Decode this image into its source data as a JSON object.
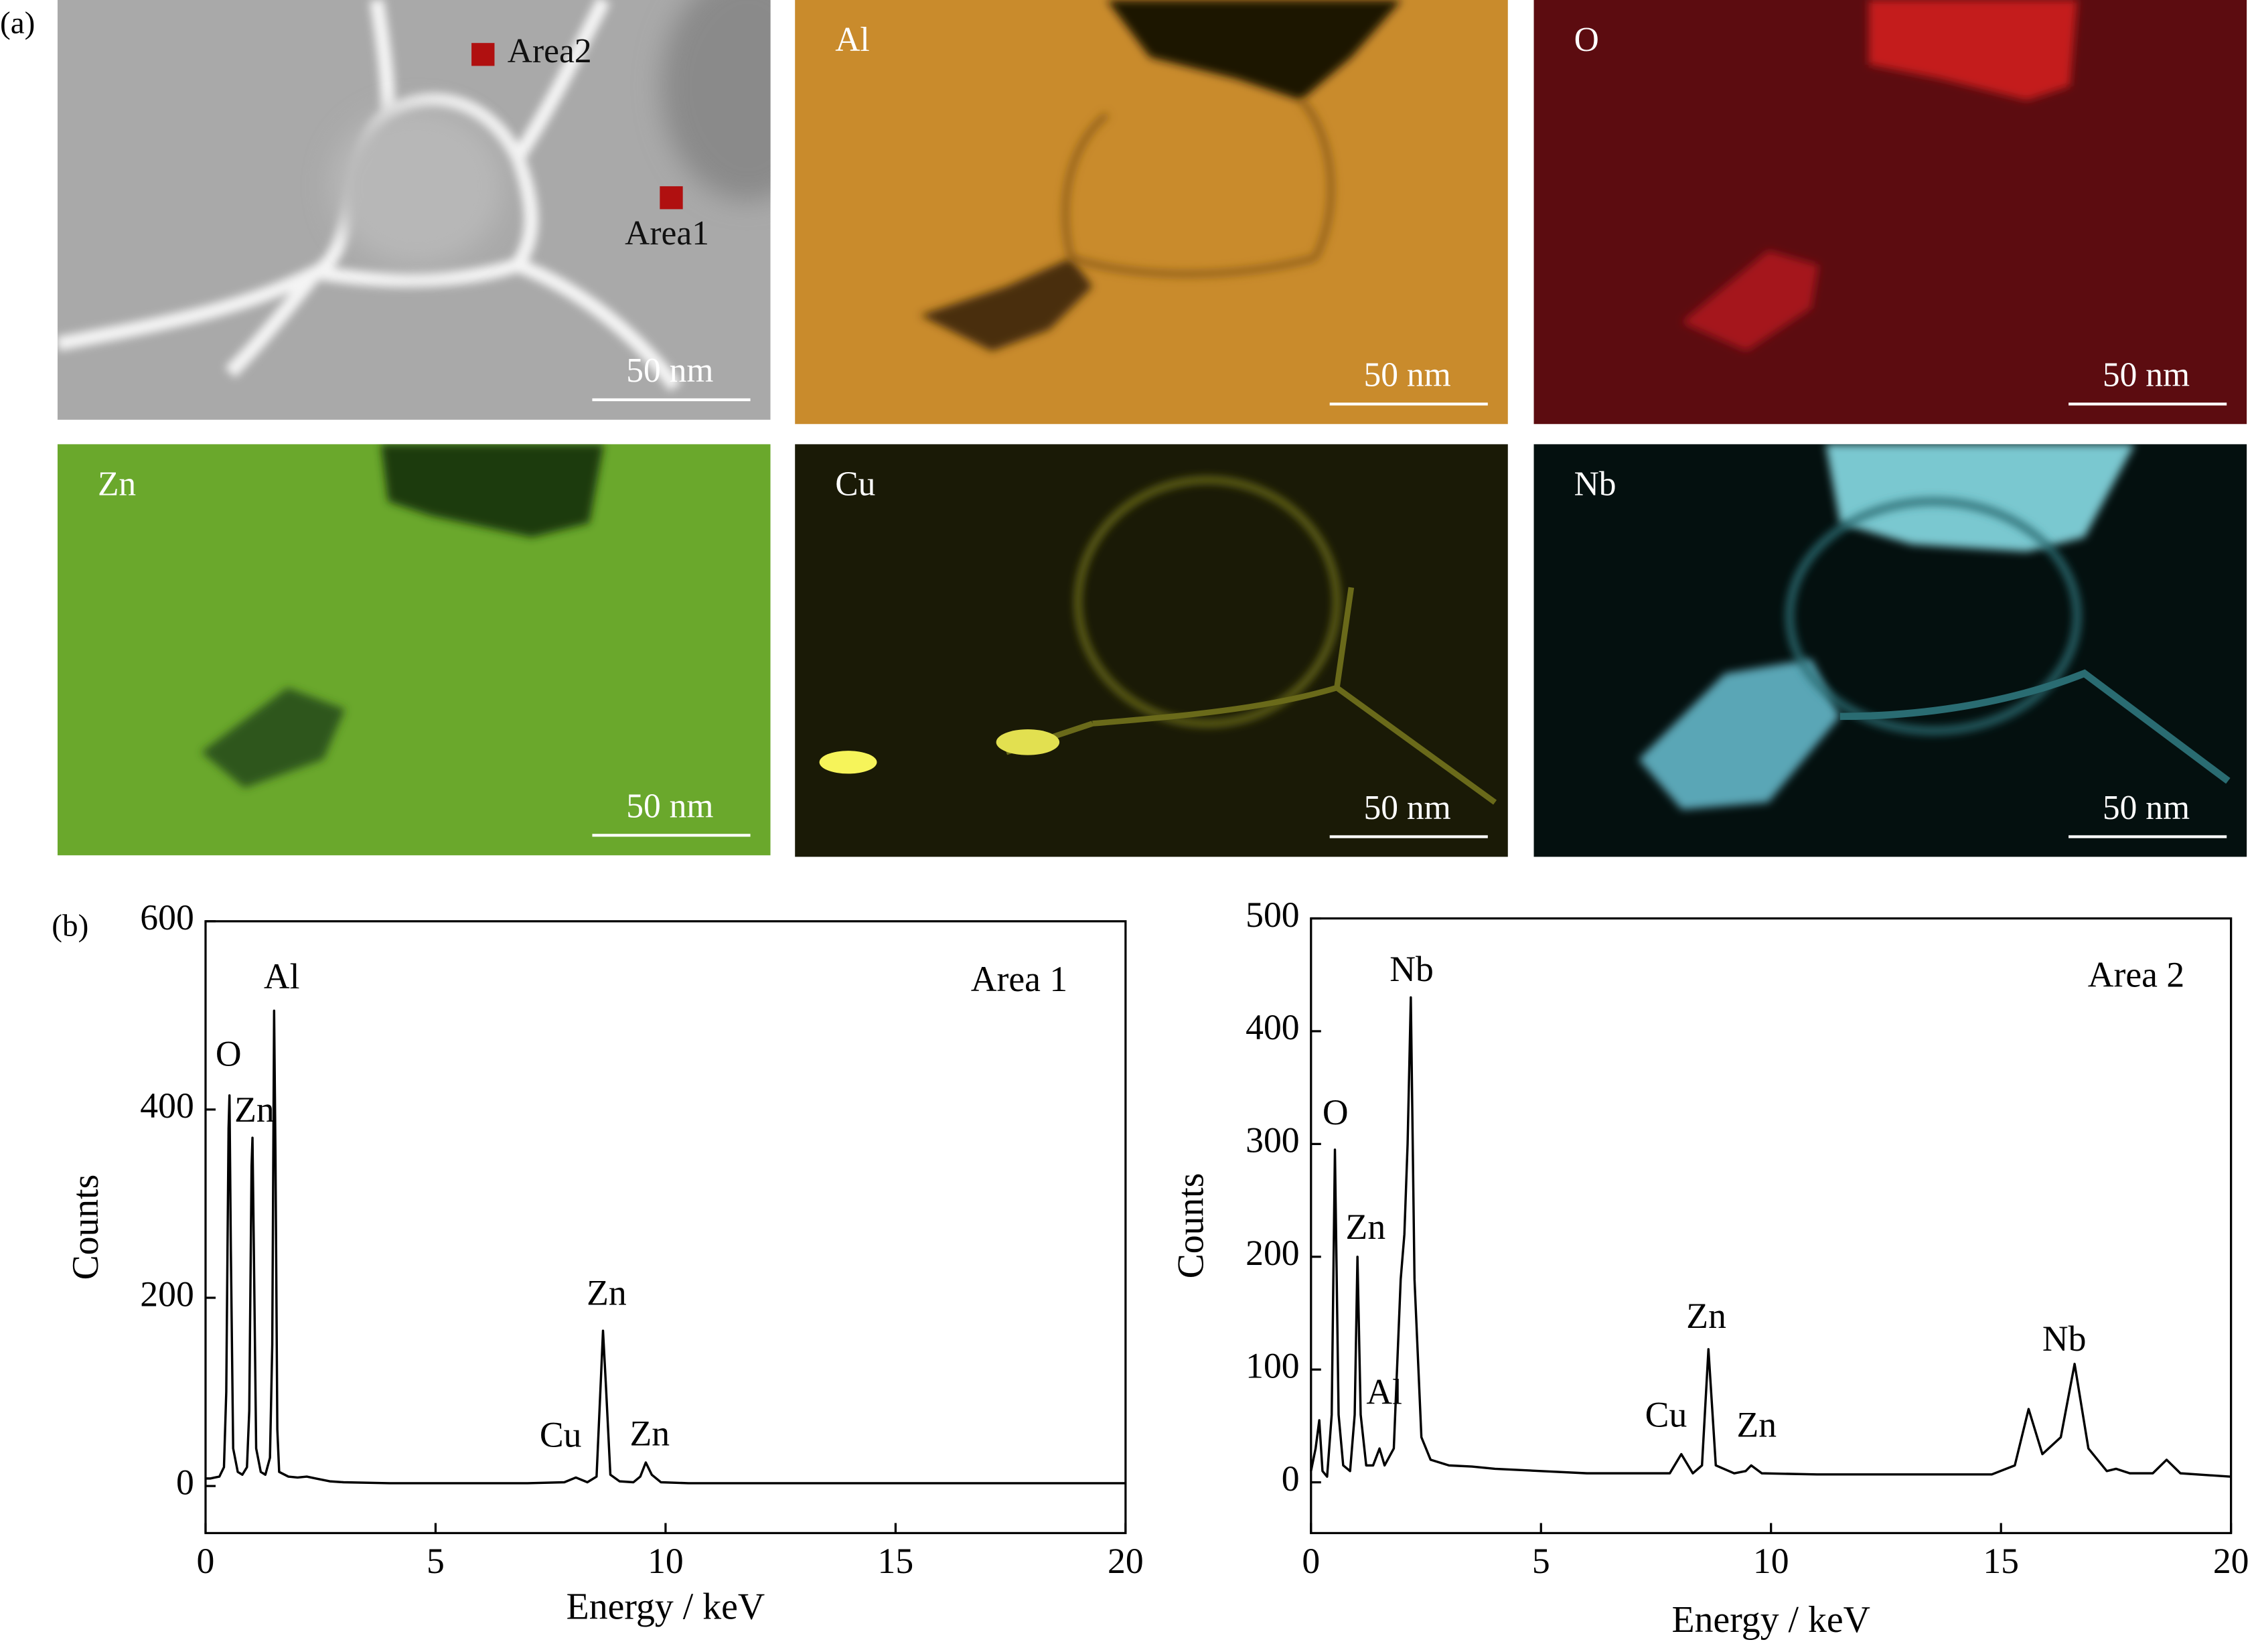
{
  "panel_labels": [
    "(a)",
    "(b)"
  ],
  "micrographs": [
    {
      "scale_bar": "50 nm",
      "markers": [
        "Area2",
        "Area1"
      ]
    },
    {
      "label": "Al",
      "scale_bar": "50 nm"
    },
    {
      "label": "O",
      "scale_bar": "50 nm"
    },
    {
      "label": "Zn",
      "scale_bar": "50 nm"
    },
    {
      "label": "Cu",
      "scale_bar": "50 nm"
    },
    {
      "label": "Nb",
      "scale_bar": "50 nm"
    }
  ],
  "chart_data": [
    {
      "type": "line",
      "x_label": "Energy / keV",
      "y_label": "Counts",
      "annotations": [
        "O",
        "Zn",
        "Al",
        "Zn",
        "Cu",
        "Zn",
        "Area 1"
      ],
      "xlim": [
        0,
        20
      ],
      "xticks": [
        0,
        5,
        10,
        15,
        20
      ],
      "ylim": [
        -50,
        600
      ],
      "yticks": [
        0,
        200,
        400,
        600
      ],
      "series": [
        {
          "color": "#000000",
          "x": [
            0,
            0.1,
            0.2,
            0.3,
            0.4,
            0.45,
            0.5,
            0.52,
            0.55,
            0.6,
            0.7,
            0.8,
            0.9,
            0.95,
            1.0,
            1.02,
            1.05,
            1.1,
            1.2,
            1.3,
            1.4,
            1.45,
            1.49,
            1.52,
            1.56,
            1.6,
            1.8,
            2.0,
            2.2,
            2.4,
            2.7,
            3,
            4,
            5,
            6,
            7,
            7.8,
            8.05,
            8.3,
            8.5,
            8.6,
            8.64,
            8.7,
            8.8,
            9.0,
            9.3,
            9.45,
            9.57,
            9.7,
            9.9,
            10.5,
            12,
            14,
            16,
            18,
            20
          ],
          "values": [
            8,
            8,
            9,
            10,
            20,
            100,
            380,
            415,
            250,
            40,
            15,
            12,
            20,
            80,
            340,
            370,
            250,
            40,
            15,
            12,
            30,
            150,
            505,
            350,
            60,
            15,
            10,
            9,
            10,
            8,
            5,
            4,
            3,
            3,
            3,
            3,
            4,
            9,
            4,
            10,
            120,
            165,
            110,
            12,
            5,
            4,
            10,
            25,
            12,
            4,
            3,
            3,
            3,
            3,
            3,
            3
          ]
        }
      ]
    },
    {
      "type": "line",
      "x_label": "Energy / keV",
      "y_label": "Counts",
      "annotations": [
        "Nb",
        "O",
        "Zn",
        "Al",
        "Zn",
        "Cu",
        "Zn",
        "Nb",
        "Area 2"
      ],
      "xlim": [
        0,
        20
      ],
      "xticks": [
        0,
        5,
        10,
        15,
        20
      ],
      "ylim": [
        -45,
        500
      ],
      "yticks": [
        0,
        100,
        200,
        300,
        400,
        500
      ],
      "series": [
        {
          "color": "#000000",
          "x": [
            0,
            0.1,
            0.18,
            0.25,
            0.35,
            0.45,
            0.52,
            0.6,
            0.7,
            0.85,
            0.95,
            1.01,
            1.08,
            1.2,
            1.35,
            1.49,
            1.6,
            1.8,
            1.95,
            2.03,
            2.1,
            2.17,
            2.25,
            2.4,
            2.6,
            3,
            3.5,
            4,
            5,
            6,
            7,
            7.8,
            8.05,
            8.3,
            8.5,
            8.64,
            8.8,
            9.2,
            9.45,
            9.57,
            9.8,
            11,
            13,
            14.8,
            15.3,
            15.6,
            15.9,
            16.3,
            16.6,
            16.9,
            17.3,
            17.5,
            17.8,
            18.3,
            18.6,
            18.9,
            20
          ],
          "values": [
            10,
            30,
            55,
            10,
            5,
            60,
            295,
            60,
            15,
            10,
            60,
            200,
            60,
            15,
            15,
            30,
            15,
            30,
            180,
            220,
            300,
            430,
            180,
            40,
            20,
            15,
            14,
            12,
            10,
            8,
            8,
            8,
            25,
            8,
            15,
            118,
            15,
            8,
            10,
            15,
            8,
            7,
            7,
            7,
            15,
            65,
            25,
            40,
            105,
            30,
            10,
            12,
            8,
            8,
            20,
            8,
            5
          ]
        }
      ]
    }
  ]
}
